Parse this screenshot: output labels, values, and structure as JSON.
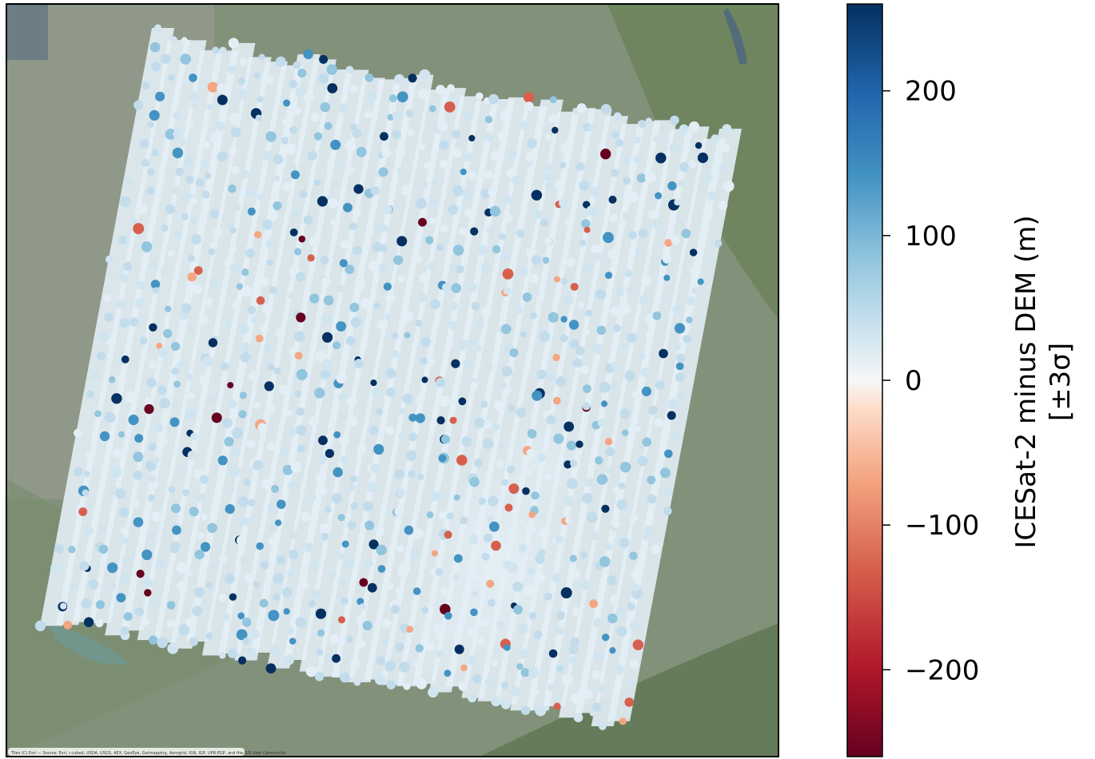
{
  "map": {
    "basemap": "satellite imagery",
    "attribution": "Tiles (C) Esri — Source: Esri, i-cubed, USDA, USGS, AEX, GeoEye, Getmapping, Aerogrid, IGN, IGP, UPR-EGP, and the GIS User Community"
  },
  "colorbar": {
    "label_line1": "ICESat-2 minus DEM (m)",
    "label_line2": "[±3σ]",
    "colormap": "RdBu",
    "range": [
      -260,
      260
    ],
    "ticks": [
      {
        "value": 200,
        "label": "200"
      },
      {
        "value": 100,
        "label": "100"
      },
      {
        "value": 0,
        "label": "0"
      },
      {
        "value": -100,
        "label": "−100"
      },
      {
        "value": -200,
        "label": "−200"
      }
    ],
    "colors": {
      "neg_max": "#67001f",
      "neg_mid": "#d6604d",
      "neg_low": "#f4a582",
      "zero": "#f7f7f7",
      "pos_low": "#92c5de",
      "pos_mid": "#4393c3",
      "pos_max": "#053061"
    }
  }
}
